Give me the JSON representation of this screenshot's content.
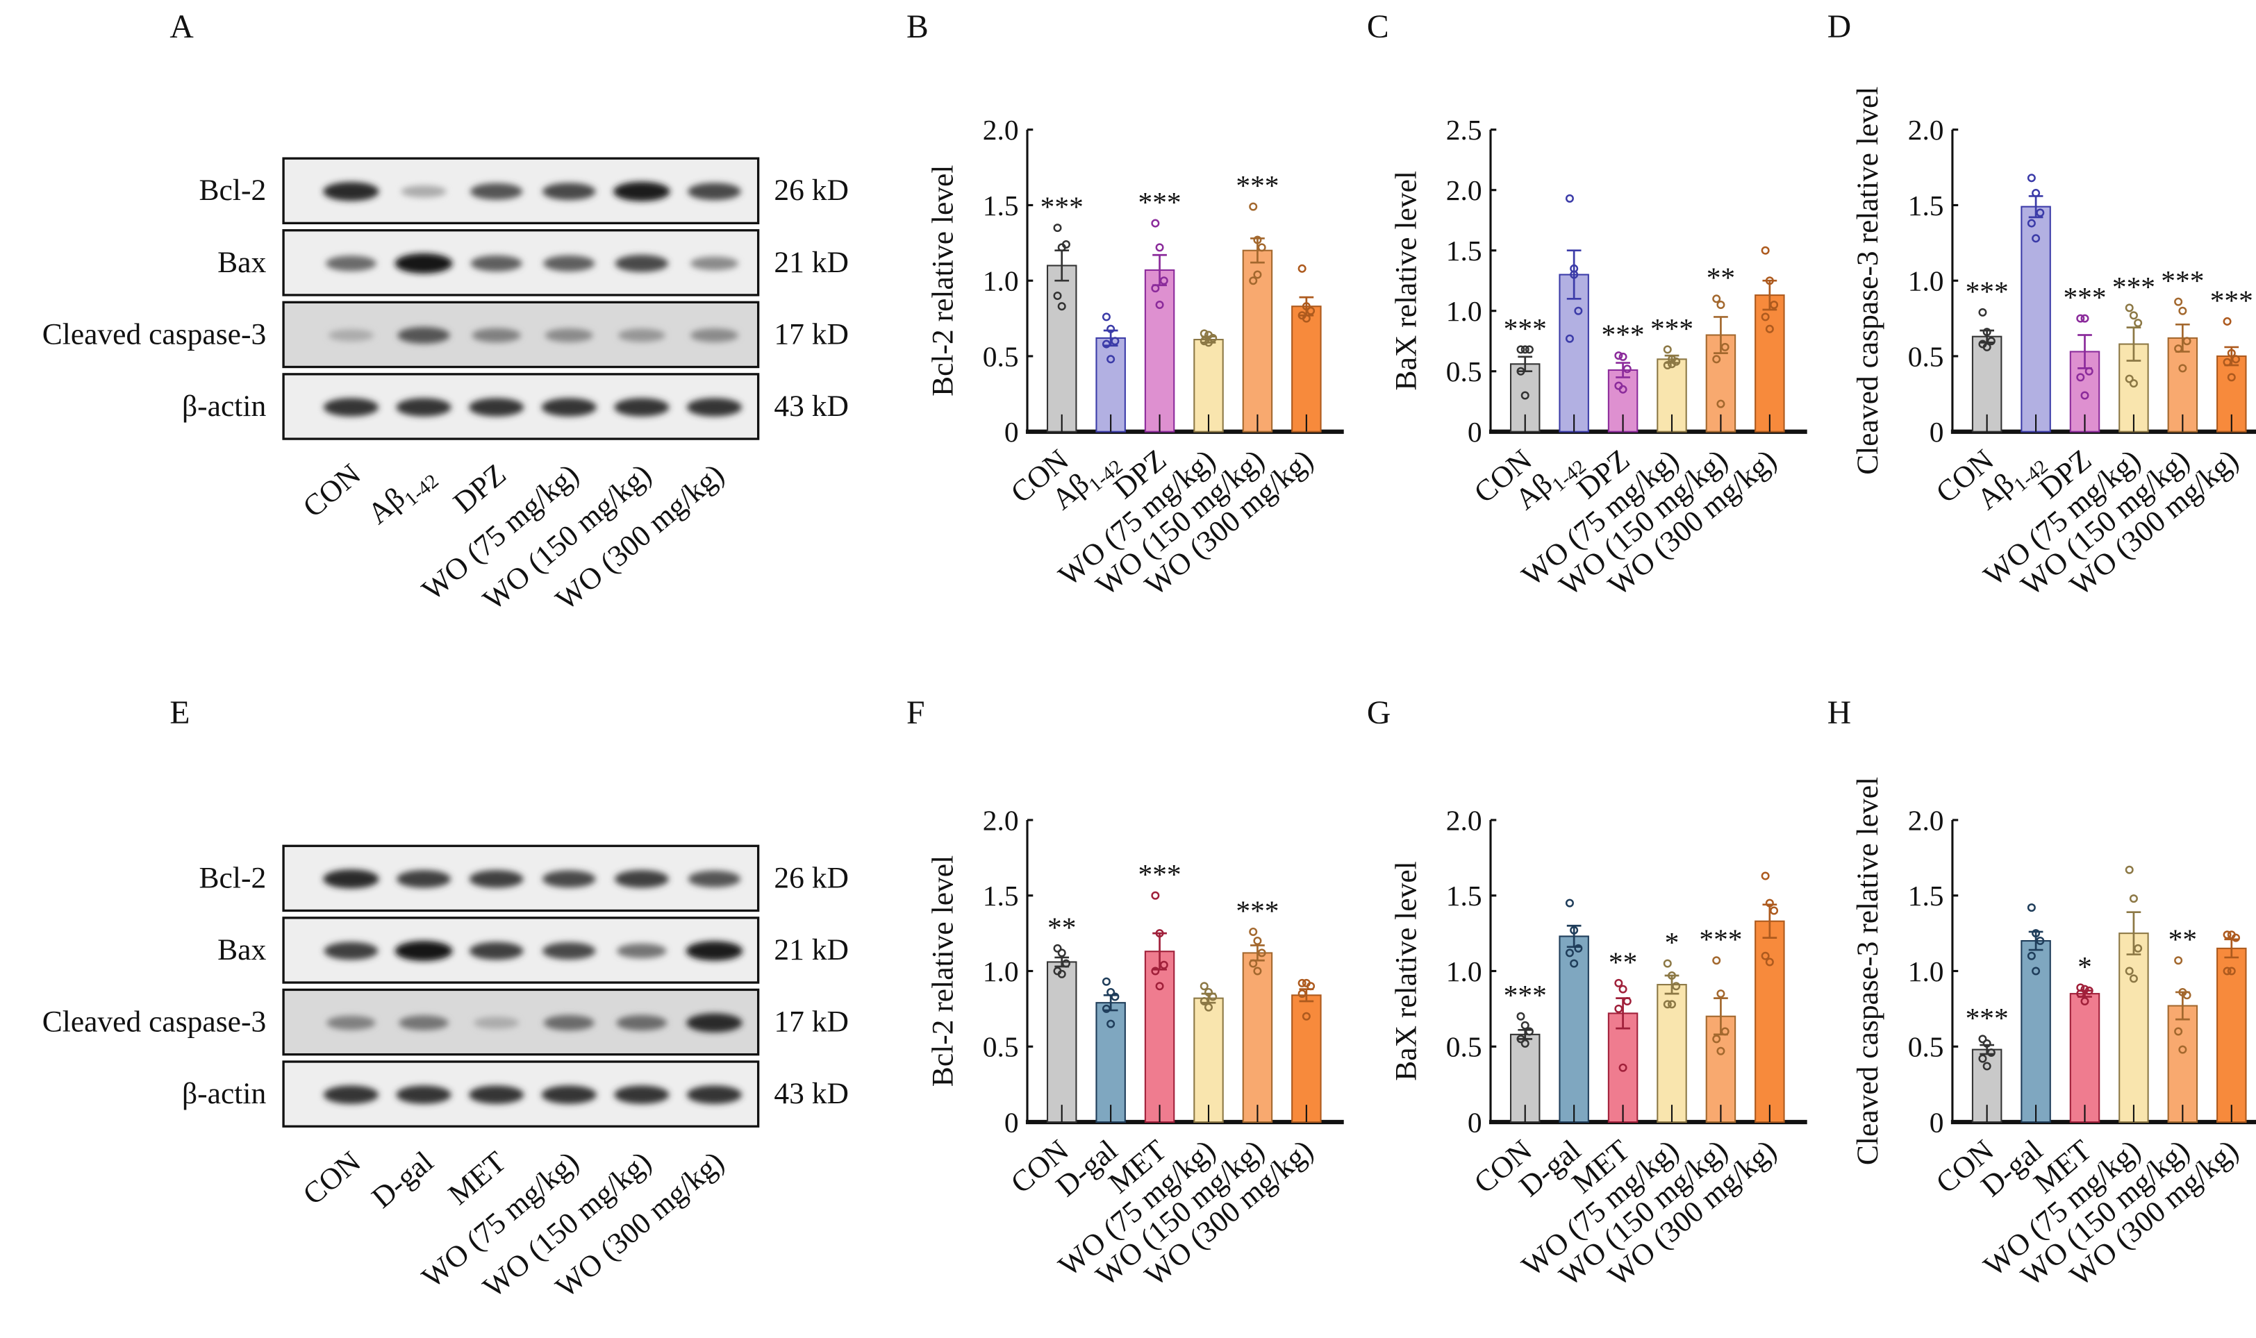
{
  "panels": {
    "A": "A",
    "B": "B",
    "C": "C",
    "D": "D",
    "E": "E",
    "F": "F",
    "G": "G",
    "H": "H"
  },
  "blots": [
    {
      "panel": "A",
      "rows": [
        {
          "name": "Bcl-2",
          "kd": "26 kD",
          "intensity": [
            0.9,
            0.3,
            0.7,
            0.75,
            0.95,
            0.75
          ]
        },
        {
          "name": "Bax",
          "kd": "21 kD",
          "intensity": [
            0.6,
            1.0,
            0.65,
            0.65,
            0.75,
            0.45
          ]
        },
        {
          "name": "Cleaved caspase-3",
          "kd": "17 kD",
          "intensity": [
            0.3,
            0.7,
            0.5,
            0.45,
            0.4,
            0.45
          ]
        },
        {
          "name": "β-actin",
          "kd": "43 kD",
          "intensity": [
            0.85,
            0.85,
            0.85,
            0.85,
            0.85,
            0.85
          ]
        }
      ],
      "lanes": [
        "CON",
        "Aβ",
        "DPZ",
        "WO (75 mg/kg)",
        "WO (150 mg/kg)",
        "WO (300 mg/kg)"
      ],
      "lane_subscripts": [
        "",
        "1-42",
        "",
        "",
        "",
        ""
      ]
    },
    {
      "panel": "E",
      "rows": [
        {
          "name": "Bcl-2",
          "kd": "26 kD",
          "intensity": [
            0.9,
            0.8,
            0.8,
            0.75,
            0.8,
            0.7
          ]
        },
        {
          "name": "Bax",
          "kd": "21 kD",
          "intensity": [
            0.8,
            1.0,
            0.8,
            0.75,
            0.55,
            0.95
          ]
        },
        {
          "name": "Cleaved caspase-3",
          "kd": "17 kD",
          "intensity": [
            0.5,
            0.55,
            0.3,
            0.6,
            0.6,
            0.9
          ]
        },
        {
          "name": "β-actin",
          "kd": "43 kD",
          "intensity": [
            0.85,
            0.85,
            0.85,
            0.85,
            0.85,
            0.85
          ]
        }
      ],
      "lanes": [
        "CON",
        "D-gal",
        "MET",
        "WO (75 mg/kg)",
        "WO (150 mg/kg)",
        "WO (300 mg/kg)"
      ],
      "lane_subscripts": [
        "",
        "",
        "",
        "",
        "",
        ""
      ]
    }
  ],
  "chart_data": [
    {
      "panel": "B",
      "type": "bar",
      "ylabel": "Bcl-2 relative level",
      "ylim": [
        0,
        2.0
      ],
      "yticks": [
        "0",
        "0.5",
        "1.0",
        "1.5",
        "2.0"
      ],
      "categories": [
        "CON",
        "Aβ",
        "DPZ",
        "WO (75 mg/kg)",
        "WO (150 mg/kg)",
        "WO (300 mg/kg)"
      ],
      "subscripts": [
        "",
        "1-42",
        "",
        "",
        "",
        ""
      ],
      "values": [
        1.1,
        0.62,
        1.07,
        0.61,
        1.2,
        0.83
      ],
      "errors": [
        0.1,
        0.05,
        0.1,
        0.02,
        0.08,
        0.06
      ],
      "points": [
        [
          1.35,
          1.22,
          1.24,
          0.9,
          0.83
        ],
        [
          0.76,
          0.68,
          0.6,
          0.58,
          0.48
        ],
        [
          1.38,
          1.22,
          1.0,
          0.95,
          0.84
        ],
        [
          0.65,
          0.64,
          0.62,
          0.6,
          0.59
        ],
        [
          1.49,
          1.27,
          1.22,
          1.0,
          1.04
        ],
        [
          1.08,
          0.83,
          0.8,
          0.77,
          0.75
        ]
      ],
      "significance": [
        "***",
        "",
        "***",
        "",
        "***",
        ""
      ],
      "colors": [
        "#c9c9c9",
        "#b2b0e2",
        "#de90d0",
        "#f9e5ae",
        "#f8a96f",
        "#f78a3c"
      ],
      "edges": [
        "#333333",
        "#3b3ba8",
        "#8b2b9b",
        "#8c7845",
        "#a3682e",
        "#ad5a1e"
      ]
    },
    {
      "panel": "C",
      "type": "bar",
      "ylabel": "BaX relative level",
      "ylim": [
        0,
        2.5
      ],
      "yticks": [
        "0",
        "0.5",
        "1.0",
        "1.5",
        "2.0",
        "2.5"
      ],
      "categories": [
        "CON",
        "Aβ",
        "DPZ",
        "WO (75 mg/kg)",
        "WO (150 mg/kg)",
        "WO (300 mg/kg)"
      ],
      "subscripts": [
        "",
        "1-42",
        "",
        "",
        "",
        ""
      ],
      "values": [
        0.56,
        1.3,
        0.51,
        0.6,
        0.8,
        1.13
      ],
      "errors": [
        0.06,
        0.2,
        0.06,
        0.03,
        0.15,
        0.12
      ],
      "points": [
        [
          0.68,
          0.68,
          0.68,
          0.5,
          0.3
        ],
        [
          1.93,
          1.35,
          1.0,
          0.77,
          1.3
        ],
        [
          0.63,
          0.62,
          0.52,
          0.38,
          0.35
        ],
        [
          0.68,
          0.6,
          0.58,
          0.55,
          0.56
        ],
        [
          1.1,
          1.05,
          0.7,
          0.6,
          0.23
        ],
        [
          1.5,
          1.25,
          1.05,
          0.95,
          0.85
        ]
      ],
      "significance": [
        "***",
        "",
        "***",
        "***",
        "**",
        ""
      ],
      "colors": [
        "#c9c9c9",
        "#b2b0e2",
        "#de90d0",
        "#f9e5ae",
        "#f8a96f",
        "#f78a3c"
      ],
      "edges": [
        "#333333",
        "#3b3ba8",
        "#8b2b9b",
        "#8c7845",
        "#a3682e",
        "#ad5a1e"
      ]
    },
    {
      "panel": "D",
      "type": "bar",
      "ylabel": "Cleaved caspase-3 relative level",
      "ylim": [
        0,
        2.0
      ],
      "yticks": [
        "0",
        "0.5",
        "1.0",
        "1.5",
        "2.0"
      ],
      "categories": [
        "CON",
        "Aβ",
        "DPZ",
        "WO (75 mg/kg)",
        "WO (150 mg/kg)",
        "WO (300 mg/kg)"
      ],
      "subscripts": [
        "",
        "1-42",
        "",
        "",
        "",
        ""
      ],
      "values": [
        0.63,
        1.49,
        0.53,
        0.58,
        0.62,
        0.5
      ],
      "errors": [
        0.04,
        0.07,
        0.11,
        0.11,
        0.09,
        0.06
      ],
      "points": [
        [
          0.79,
          0.66,
          0.6,
          0.58,
          0.56
        ],
        [
          1.68,
          1.58,
          1.45,
          1.38,
          1.28
        ],
        [
          0.75,
          0.75,
          0.4,
          0.36,
          0.24
        ],
        [
          0.82,
          0.77,
          0.72,
          0.35,
          0.32
        ],
        [
          0.86,
          0.8,
          0.6,
          0.55,
          0.42
        ],
        [
          0.73,
          0.52,
          0.48,
          0.46,
          0.36
        ]
      ],
      "significance": [
        "***",
        "",
        "***",
        "***",
        "***",
        "***"
      ],
      "colors": [
        "#c9c9c9",
        "#b2b0e2",
        "#de90d0",
        "#f9e5ae",
        "#f8a96f",
        "#f78a3c"
      ],
      "edges": [
        "#333333",
        "#3b3ba8",
        "#8b2b9b",
        "#8c7845",
        "#a3682e",
        "#ad5a1e"
      ]
    },
    {
      "panel": "F",
      "type": "bar",
      "ylabel": "Bcl-2 relative level",
      "ylim": [
        0,
        2.0
      ],
      "yticks": [
        "0",
        "0.5",
        "1.0",
        "1.5",
        "2.0"
      ],
      "categories": [
        "CON",
        "D-gal",
        "MET",
        "WO (75 mg/kg)",
        "WO (150 mg/kg)",
        "WO (300 mg/kg)"
      ],
      "subscripts": [
        "",
        "",
        "",
        "",
        "",
        ""
      ],
      "values": [
        1.06,
        0.79,
        1.13,
        0.82,
        1.12,
        0.84
      ],
      "errors": [
        0.03,
        0.05,
        0.12,
        0.03,
        0.05,
        0.04
      ],
      "points": [
        [
          1.15,
          1.12,
          1.05,
          1.0,
          0.98
        ],
        [
          0.93,
          0.86,
          0.83,
          0.75,
          0.65
        ],
        [
          1.5,
          1.25,
          1.04,
          1.0,
          0.9
        ],
        [
          0.9,
          0.86,
          0.83,
          0.8,
          0.76
        ],
        [
          1.26,
          1.2,
          1.12,
          1.05,
          1.0
        ],
        [
          0.92,
          0.92,
          0.9,
          0.85,
          0.7
        ]
      ],
      "significance": [
        "**",
        "",
        "***",
        "",
        "***",
        ""
      ],
      "colors": [
        "#c9c9c9",
        "#7fa7c0",
        "#ef7c8f",
        "#f9e5ae",
        "#f8a96f",
        "#f78a3c"
      ],
      "edges": [
        "#333333",
        "#1f3d5a",
        "#a0203a",
        "#8c7845",
        "#a3682e",
        "#ad5a1e"
      ]
    },
    {
      "panel": "G",
      "type": "bar",
      "ylabel": "BaX relative level",
      "ylim": [
        0,
        2.0
      ],
      "yticks": [
        "0",
        "0.5",
        "1.0",
        "1.5",
        "2.0"
      ],
      "categories": [
        "CON",
        "D-gal",
        "MET",
        "WO (75 mg/kg)",
        "WO (150 mg/kg)",
        "WO (300 mg/kg)"
      ],
      "subscripts": [
        "",
        "",
        "",
        "",
        "",
        ""
      ],
      "values": [
        0.58,
        1.23,
        0.72,
        0.91,
        0.7,
        1.33
      ],
      "errors": [
        0.03,
        0.07,
        0.1,
        0.06,
        0.12,
        0.11
      ],
      "points": [
        [
          0.7,
          0.64,
          0.6,
          0.55,
          0.52
        ],
        [
          1.45,
          1.27,
          1.15,
          1.12,
          1.05
        ],
        [
          0.92,
          0.88,
          0.8,
          0.75,
          0.36
        ],
        [
          1.05,
          0.97,
          0.9,
          0.78,
          0.78
        ],
        [
          1.07,
          0.85,
          0.6,
          0.55,
          0.47
        ],
        [
          1.63,
          1.45,
          1.4,
          1.1,
          1.06
        ]
      ],
      "significance": [
        "***",
        "",
        "**",
        "*",
        "***",
        ""
      ],
      "colors": [
        "#c9c9c9",
        "#7fa7c0",
        "#ef7c8f",
        "#f9e5ae",
        "#f8a96f",
        "#f78a3c"
      ],
      "edges": [
        "#333333",
        "#1f3d5a",
        "#a0203a",
        "#8c7845",
        "#a3682e",
        "#ad5a1e"
      ]
    },
    {
      "panel": "H",
      "type": "bar",
      "ylabel": "Cleaved caspase-3 relative level",
      "ylim": [
        0,
        2.0
      ],
      "yticks": [
        "0",
        "0.5",
        "1.0",
        "1.5",
        "2.0"
      ],
      "categories": [
        "CON",
        "D-gal",
        "MET",
        "WO (75 mg/kg)",
        "WO (150 mg/kg)",
        "WO (300 mg/kg)"
      ],
      "subscripts": [
        "",
        "",
        "",
        "",
        "",
        ""
      ],
      "values": [
        0.48,
        1.2,
        0.85,
        1.25,
        0.77,
        1.15
      ],
      "errors": [
        0.03,
        0.06,
        0.02,
        0.14,
        0.09,
        0.06
      ],
      "points": [
        [
          0.55,
          0.52,
          0.46,
          0.42,
          0.37
        ],
        [
          1.42,
          1.25,
          1.2,
          1.1,
          1.0
        ],
        [
          0.89,
          0.88,
          0.87,
          0.85,
          0.8
        ],
        [
          1.67,
          1.48,
          1.15,
          1.0,
          0.95
        ],
        [
          1.07,
          0.86,
          0.84,
          0.6,
          0.48
        ],
        [
          1.24,
          1.24,
          1.22,
          1.0,
          1.0
        ]
      ],
      "significance": [
        "***",
        "",
        "*",
        "",
        "**",
        ""
      ],
      "colors": [
        "#c9c9c9",
        "#7fa7c0",
        "#ef7c8f",
        "#f9e5ae",
        "#f8a96f",
        "#f78a3c"
      ],
      "edges": [
        "#333333",
        "#1f3d5a",
        "#a0203a",
        "#8c7845",
        "#a3682e",
        "#ad5a1e"
      ]
    }
  ]
}
